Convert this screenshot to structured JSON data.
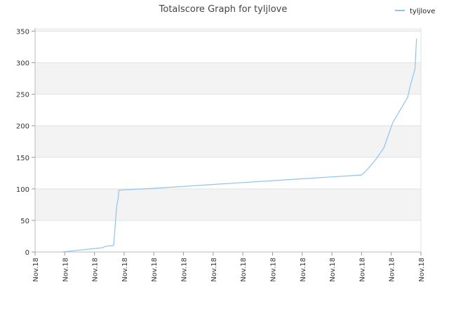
{
  "chart_data": {
    "type": "line",
    "title": "Totalscore Graph for tyljlove",
    "xlabel": "",
    "ylabel": "",
    "ylim": [
      0,
      355
    ],
    "y_ticks": [
      0,
      50,
      100,
      150,
      200,
      250,
      300,
      350
    ],
    "x_tick_labels": [
      "Nov.18",
      "Nov.18",
      "Nov.18",
      "Nov.18",
      "Nov.18",
      "Nov.18",
      "Nov.18",
      "Nov.18",
      "Nov.18",
      "Nov.18",
      "Nov.18",
      "Nov.18",
      "Nov.18",
      "Nov.18"
    ],
    "x_range": [
      0,
      13
    ],
    "grid": true,
    "legend_position": "top-right",
    "series": [
      {
        "name": "tyljlove",
        "color": "#8ec3ee",
        "points": [
          [
            0.9,
            0
          ],
          [
            1.5,
            3
          ],
          [
            2.3,
            7
          ],
          [
            2.35,
            9
          ],
          [
            2.6,
            10
          ],
          [
            2.65,
            11
          ],
          [
            2.7,
            42
          ],
          [
            2.75,
            72
          ],
          [
            2.8,
            86
          ],
          [
            2.82,
            98
          ],
          [
            4,
            101
          ],
          [
            5,
            104
          ],
          [
            6,
            107
          ],
          [
            7,
            110
          ],
          [
            8,
            113
          ],
          [
            9,
            116
          ],
          [
            10,
            119
          ],
          [
            11,
            122
          ],
          [
            11.2,
            131
          ],
          [
            11.5,
            148
          ],
          [
            11.75,
            165
          ],
          [
            11.9,
            185
          ],
          [
            12.05,
            205
          ],
          [
            12.3,
            225
          ],
          [
            12.55,
            245
          ],
          [
            12.65,
            265
          ],
          [
            12.8,
            290
          ],
          [
            12.83,
            318
          ],
          [
            12.85,
            338
          ]
        ]
      }
    ]
  }
}
